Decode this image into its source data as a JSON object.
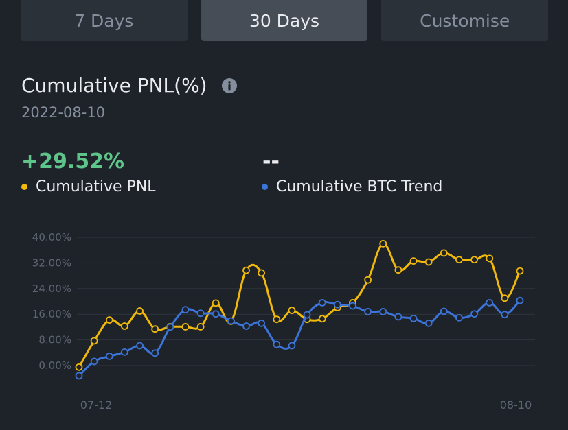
{
  "tabs": [
    {
      "label": "7 Days",
      "active": false
    },
    {
      "label": "30 Days",
      "active": true
    },
    {
      "label": "Customise",
      "active": false
    }
  ],
  "header": {
    "title": "Cumulative PNL(%)",
    "info_icon": "info-icon",
    "date": "2022-08-10"
  },
  "metrics": {
    "pnl_value": "+29.52%",
    "btc_value": "--"
  },
  "legend": {
    "pnl_label": "Cumulative PNL",
    "btc_label": "Cumulative BTC Trend"
  },
  "colors": {
    "pnl": "#f0b90b",
    "btc": "#3c74d9",
    "positive": "#5ec489"
  },
  "chart_data": {
    "type": "line",
    "ylim": [
      -4,
      42
    ],
    "yticks": [
      0,
      8,
      16,
      24,
      32,
      40
    ],
    "ytick_labels": [
      "0.00%",
      "8.00%",
      "16.00%",
      "24.00%",
      "32.00%",
      "40.00%"
    ],
    "xtick_labels": [
      "07-12",
      "08-10"
    ],
    "x": [
      "07-12",
      "07-13",
      "07-14",
      "07-15",
      "07-16",
      "07-17",
      "07-18",
      "07-19",
      "07-20",
      "07-21",
      "07-22",
      "07-23",
      "07-24",
      "07-25",
      "07-26",
      "07-27",
      "07-28",
      "07-29",
      "07-30",
      "07-31",
      "08-01",
      "08-02",
      "08-03",
      "08-04",
      "08-05",
      "08-06",
      "08-07",
      "08-08",
      "08-09",
      "08-10"
    ],
    "grid": true,
    "series": [
      {
        "name": "Cumulative PNL",
        "values": [
          -0.5,
          7.7,
          14.2,
          12.3,
          17.0,
          11.4,
          12.1,
          12.1,
          12.1,
          19.5,
          13.8,
          29.7,
          28.9,
          14.4,
          17.2,
          14.4,
          14.6,
          18.1,
          19.6,
          26.7,
          38.0,
          29.8,
          32.6,
          32.3,
          35.1,
          33.0,
          33.0,
          33.4,
          21.0,
          29.5
        ]
      },
      {
        "name": "Cumulative BTC Trend",
        "values": [
          -3.2,
          1.3,
          2.9,
          4.2,
          6.2,
          3.9,
          12.0,
          17.4,
          16.3,
          16.1,
          13.9,
          12.3,
          13.2,
          6.6,
          6.2,
          15.8,
          19.6,
          19.0,
          18.6,
          16.8,
          16.8,
          15.2,
          14.7,
          13.2,
          16.9,
          14.9,
          16.1,
          19.6,
          15.9,
          20.3
        ]
      }
    ]
  }
}
